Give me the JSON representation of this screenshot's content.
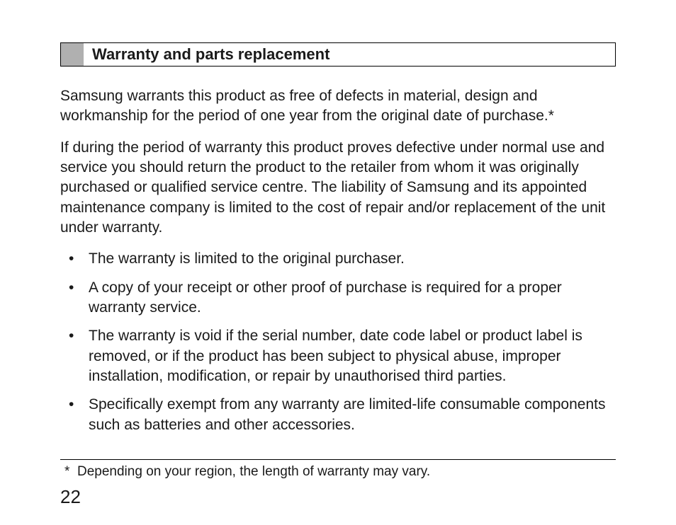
{
  "heading": "Warranty and parts replacement",
  "paragraphs": [
    "Samsung warrants this product as free of defects in material, design and workmanship for the period of one year from the original date of purchase.*",
    "If during the period of warranty this product proves defective under normal use and service you should return the product to the retailer from whom it was originally purchased or qualified service centre. The liability of Samsung and its appointed maintenance company is limited to the cost of repair and/or replacement of the unit under warranty."
  ],
  "bullets": [
    "The warranty is limited to the original purchaser.",
    "A copy of your receipt or other proof of purchase is required for a proper warranty service.",
    "The warranty is void if the serial number, date code label or product label is removed, or if the product has been subject to physical abuse, improper installation, modification, or repair by unauthorised third parties.",
    "Specifically exempt from any warranty are limited-life consumable components such as batteries and other accessories."
  ],
  "footnote": "Depending on your region, the length of warranty may vary.",
  "page_number": "22",
  "style": {
    "background_color": "#ffffff",
    "text_color": "#1a1a1a",
    "heading_square_color": "#b0b0b0",
    "heading_border_color": "#000000",
    "body_fontsize": 21,
    "heading_fontsize": 22,
    "footnote_fontsize": 19,
    "page_number_fontsize": 26
  }
}
